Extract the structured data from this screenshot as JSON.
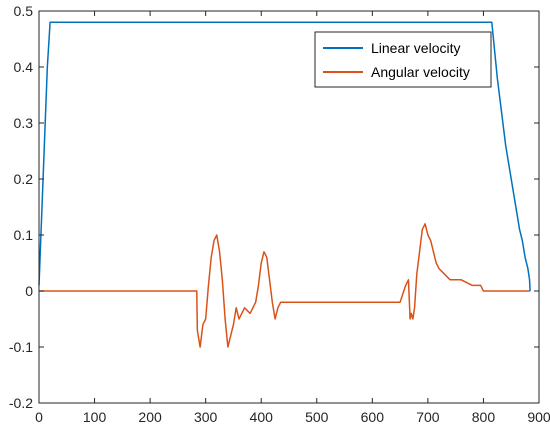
{
  "chart_data": {
    "type": "line",
    "title": "",
    "xlabel": "",
    "ylabel": "",
    "xlim": [
      0,
      900
    ],
    "ylim": [
      -0.2,
      0.5
    ],
    "xticks": [
      0,
      100,
      200,
      300,
      400,
      500,
      600,
      700,
      800,
      900
    ],
    "yticks": [
      -0.2,
      -0.1,
      0,
      0.1,
      0.2,
      0.3,
      0.4,
      0.5
    ],
    "xtick_labels": [
      "0",
      "100",
      "200",
      "300",
      "400",
      "500",
      "600",
      "700",
      "800",
      "900"
    ],
    "ytick_labels": [
      "-0.2",
      "-0.1",
      "0",
      "0.1",
      "0.2",
      "0.3",
      "0.4",
      "0.5"
    ],
    "grid": false,
    "legend_position": "top-right",
    "series": [
      {
        "name": "Linear velocity",
        "color": "#0072BD",
        "x": [
          0,
          5,
          10,
          15,
          20,
          25,
          30,
          100,
          200,
          300,
          400,
          500,
          600,
          700,
          800,
          815,
          820,
          825,
          830,
          835,
          840,
          845,
          850,
          855,
          860,
          865,
          870,
          875,
          880,
          883,
          884
        ],
        "y": [
          0.01,
          0.14,
          0.27,
          0.4,
          0.48,
          0.48,
          0.48,
          0.48,
          0.48,
          0.48,
          0.48,
          0.48,
          0.48,
          0.48,
          0.48,
          0.48,
          0.43,
          0.38,
          0.34,
          0.3,
          0.26,
          0.23,
          0.2,
          0.17,
          0.14,
          0.11,
          0.09,
          0.06,
          0.04,
          0.02,
          0.0
        ]
      },
      {
        "name": "Angular velocity",
        "color": "#D95319",
        "x": [
          0,
          284,
          285,
          290,
          295,
          300,
          305,
          310,
          315,
          320,
          325,
          330,
          335,
          340,
          345,
          350,
          355,
          360,
          365,
          370,
          380,
          390,
          395,
          400,
          405,
          410,
          415,
          420,
          425,
          430,
          435,
          440,
          445,
          450,
          455,
          460,
          470,
          480,
          490,
          500,
          510,
          520,
          530,
          540,
          550,
          560,
          570,
          580,
          590,
          600,
          610,
          620,
          630,
          640,
          650,
          660,
          665,
          668,
          670,
          673,
          676,
          680,
          685,
          690,
          695,
          700,
          705,
          710,
          715,
          720,
          730,
          740,
          760,
          780,
          795,
          800,
          820,
          840,
          860,
          880,
          884
        ],
        "y": [
          0,
          0,
          -0.07,
          -0.1,
          -0.06,
          -0.05,
          0.01,
          0.06,
          0.09,
          0.1,
          0.07,
          0.02,
          -0.05,
          -0.1,
          -0.08,
          -0.06,
          -0.03,
          -0.05,
          -0.04,
          -0.03,
          -0.04,
          -0.02,
          0.01,
          0.05,
          0.07,
          0.06,
          0.02,
          -0.02,
          -0.05,
          -0.03,
          -0.02,
          -0.02,
          -0.02,
          -0.02,
          -0.02,
          -0.02,
          -0.02,
          -0.02,
          -0.02,
          -0.02,
          -0.02,
          -0.02,
          -0.02,
          -0.02,
          -0.02,
          -0.02,
          -0.02,
          -0.02,
          -0.02,
          -0.02,
          -0.02,
          -0.02,
          -0.02,
          -0.02,
          -0.02,
          0.01,
          0.02,
          -0.05,
          -0.04,
          -0.05,
          -0.03,
          0.03,
          0.07,
          0.11,
          0.12,
          0.1,
          0.09,
          0.07,
          0.05,
          0.04,
          0.03,
          0.02,
          0.02,
          0.01,
          0.01,
          0.0,
          0.0,
          0.0,
          0.0,
          0.0,
          0.0
        ]
      }
    ]
  }
}
